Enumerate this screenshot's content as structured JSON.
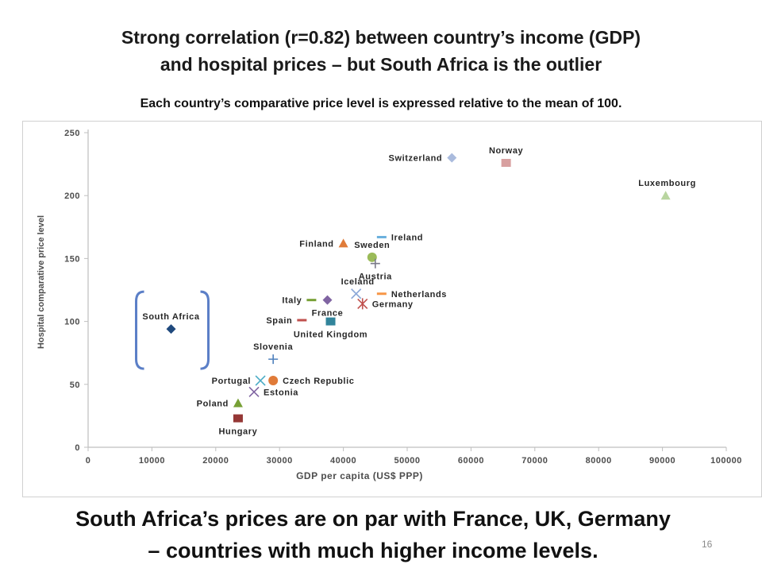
{
  "slide": {
    "title_line1": "Strong correlation (r=0.82) between country’s income (GDP)",
    "title_line2": "and hospital prices – but South Africa is the outlier",
    "subtitle": "Each country’s comparative price level is expressed relative to the mean of 100.",
    "conclusion_line1": "South Africa’s prices are on par with France, UK, Germany",
    "conclusion_line2": "– countries with much higher income levels.",
    "page_number": "16"
  },
  "colors": {
    "axis": "#bfbfbf",
    "label": "#262626",
    "tick": "#4d4d4d",
    "bracket": "#5b7fc7"
  },
  "chart_data": {
    "type": "scatter",
    "xlabel": "GDP per capita (US$ PPP)",
    "ylabel": "Hospital comparative price level",
    "xlim": [
      0,
      100000
    ],
    "ylim": [
      0,
      250
    ],
    "xticks": [
      0,
      10000,
      20000,
      30000,
      40000,
      50000,
      60000,
      70000,
      80000,
      90000,
      100000
    ],
    "yticks": [
      0,
      50,
      100,
      150,
      200,
      250
    ],
    "grid": false,
    "legend": "none",
    "annotation": "bracket around South Africa",
    "points": [
      {
        "label": "Switzerland",
        "x": 57000,
        "y": 230,
        "marker": "diamond",
        "color": "#aabbdd",
        "label_pos": "left"
      },
      {
        "label": "Norway",
        "x": 65500,
        "y": 226,
        "marker": "square",
        "color": "#d8a0a0",
        "label_pos": "above"
      },
      {
        "label": "Luxembourg",
        "x": 90500,
        "y": 200,
        "marker": "triangle",
        "color": "#b9d5a0",
        "label_pos": "above-left"
      },
      {
        "label": "Ireland",
        "x": 46000,
        "y": 167,
        "marker": "dash",
        "color": "#6ab0dd",
        "label_pos": "right"
      },
      {
        "label": "Finland",
        "x": 40000,
        "y": 162,
        "marker": "triangle",
        "color": "#e07b39",
        "label_pos": "left"
      },
      {
        "label": "Sweden",
        "x": 44500,
        "y": 151,
        "marker": "circle",
        "color": "#9bbb59",
        "label_pos": "above"
      },
      {
        "label": "Austria",
        "x": 45000,
        "y": 146,
        "marker": "plus",
        "color": "#7a7a8a",
        "label_pos": "below"
      },
      {
        "label": "Iceland",
        "x": 42000,
        "y": 122,
        "marker": "x",
        "color": "#8ca8d8",
        "label_pos": "above-left"
      },
      {
        "label": "Netherlands",
        "x": 46000,
        "y": 122,
        "marker": "dash",
        "color": "#f79646",
        "label_pos": "right"
      },
      {
        "label": "Germany",
        "x": 43000,
        "y": 114,
        "marker": "star",
        "color": "#c0504d",
        "label_pos": "right"
      },
      {
        "label": "Italy",
        "x": 35000,
        "y": 117,
        "marker": "dash",
        "color": "#77a035",
        "label_pos": "left"
      },
      {
        "label": "France",
        "x": 37500,
        "y": 117,
        "marker": "diamond",
        "color": "#8064a2",
        "label_pos": "below"
      },
      {
        "label": "Spain",
        "x": 33500,
        "y": 101,
        "marker": "dash",
        "color": "#c0504d",
        "label_pos": "left"
      },
      {
        "label": "United Kingdom",
        "x": 38000,
        "y": 100,
        "marker": "square",
        "color": "#31849b",
        "label_pos": "below"
      },
      {
        "label": "South Africa",
        "x": 13000,
        "y": 94,
        "marker": "diamond",
        "color": "#1f497d",
        "label_pos": "above"
      },
      {
        "label": "Slovenia",
        "x": 29000,
        "y": 70,
        "marker": "plus",
        "color": "#4f81bd",
        "label_pos": "above"
      },
      {
        "label": "Portugal",
        "x": 27000,
        "y": 53,
        "marker": "x",
        "color": "#4bacc6",
        "label_pos": "left"
      },
      {
        "label": "Czech Republic",
        "x": 29000,
        "y": 53,
        "marker": "circle",
        "color": "#e07b39",
        "label_pos": "right"
      },
      {
        "label": "Estonia",
        "x": 26000,
        "y": 44,
        "marker": "x",
        "color": "#8064a2",
        "label_pos": "right"
      },
      {
        "label": "Poland",
        "x": 23500,
        "y": 35,
        "marker": "triangle",
        "color": "#77a035",
        "label_pos": "left"
      },
      {
        "label": "Hungary",
        "x": 23500,
        "y": 23,
        "marker": "square",
        "color": "#953735",
        "label_pos": "below"
      }
    ]
  }
}
